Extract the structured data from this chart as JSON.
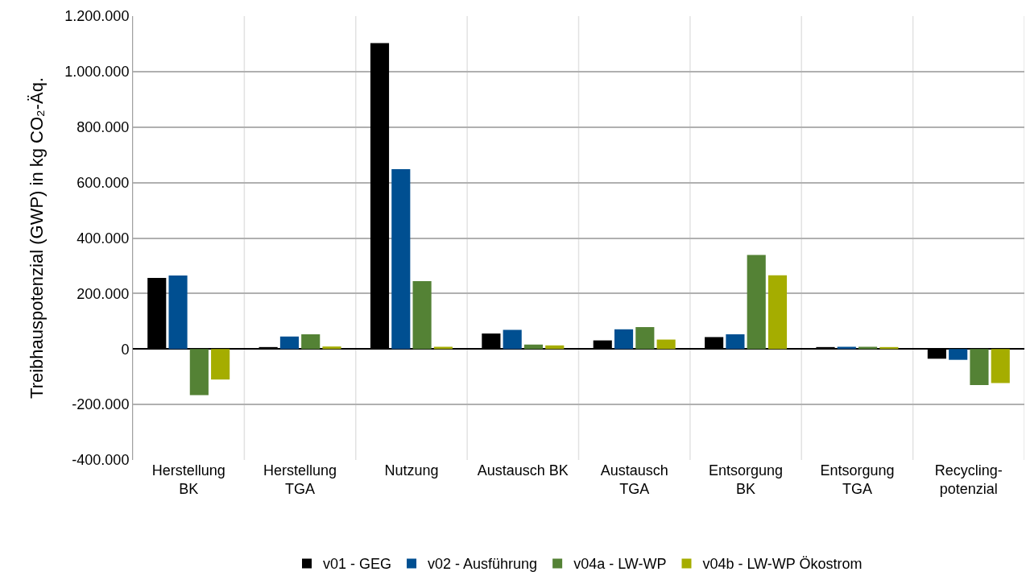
{
  "chart_data": {
    "type": "bar",
    "ylabel": "Treibhauspotenzial (GWP) in kg CO₂-Äq.",
    "categories": [
      "Herstellung\nBK",
      "Herstellung\nTGA",
      "Nutzung",
      "Austausch BK",
      "Austausch\nTGA",
      "Entsorgung\nBK",
      "Entsorgung\nTGA",
      "Recycling-\npotenzial"
    ],
    "series": [
      {
        "name": "v01 - GEG",
        "color": "#000000",
        "values": [
          256000,
          7000,
          1103000,
          56000,
          31000,
          43000,
          7000,
          -35000
        ]
      },
      {
        "name": "v02 - Ausführung",
        "color": "#004f91",
        "values": [
          265000,
          45000,
          648000,
          69000,
          71000,
          53000,
          8000,
          -39000
        ]
      },
      {
        "name": "v04a - LW-WP",
        "color": "#548235",
        "values": [
          -166000,
          53000,
          245000,
          16000,
          79000,
          339000,
          8000,
          -130000
        ]
      },
      {
        "name": "v04b - LW-WP Ökostrom",
        "color": "#a5ad00",
        "values": [
          -110000,
          9000,
          8000,
          13000,
          34000,
          266000,
          7000,
          -123000
        ]
      }
    ],
    "ylim": [
      -400000,
      1200000
    ],
    "yticks": [
      {
        "value": -400000,
        "label": "-400.000"
      },
      {
        "value": -200000,
        "label": "-200.000"
      },
      {
        "value": 0,
        "label": "0"
      },
      {
        "value": 200000,
        "label": "200.000"
      },
      {
        "value": 400000,
        "label": "400.000"
      },
      {
        "value": 600000,
        "label": "600.000"
      },
      {
        "value": 800000,
        "label": "800.000"
      },
      {
        "value": 1000000,
        "label": "1.000.000"
      },
      {
        "value": 1200000,
        "label": "1.200.000"
      }
    ],
    "grid": true,
    "legend": "bottom"
  }
}
